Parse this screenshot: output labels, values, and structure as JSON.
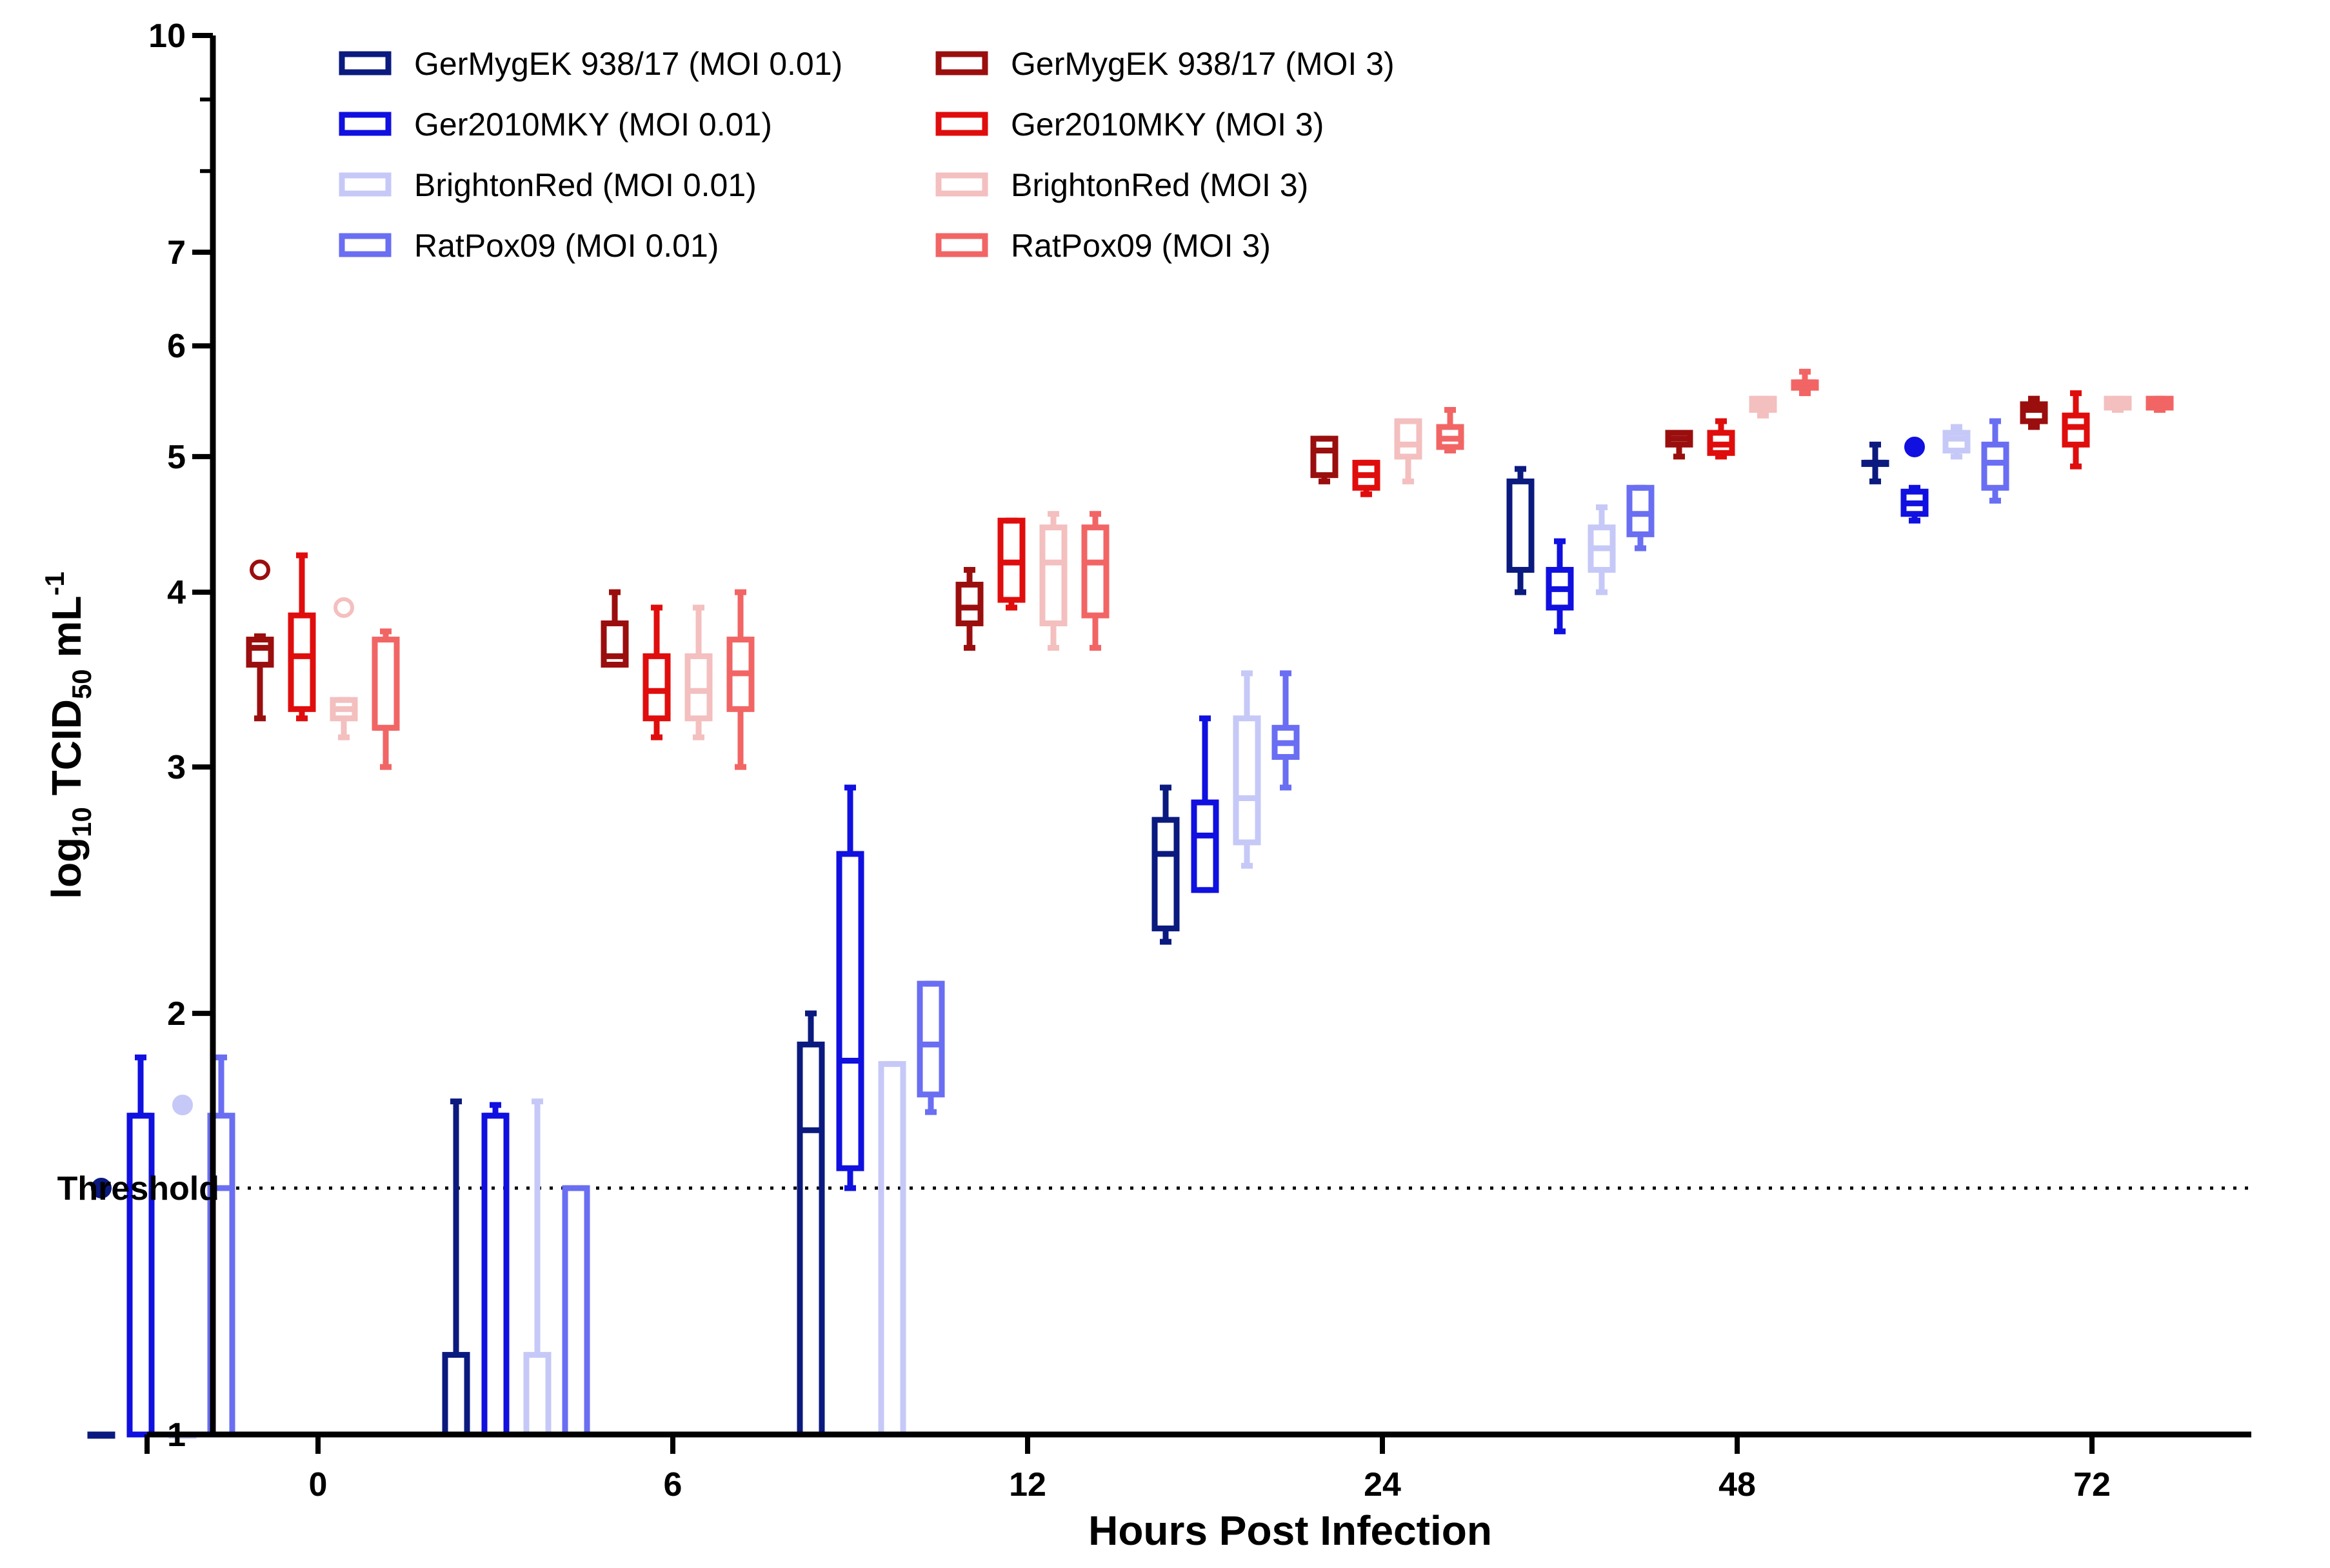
{
  "chart_data": {
    "type": "box",
    "xlabel": "Hours Post Infection",
    "ylabel": "log10 TCID50 mL-1",
    "ylabel_parts": {
      "pre": "log",
      "sub1": "10",
      "mid": " TCID",
      "sub2": "50",
      "post": " mL",
      "sup": "-1"
    },
    "ylim": [
      1,
      10
    ],
    "y_scale": "log",
    "y_ticks": [
      1,
      2,
      3,
      4,
      5,
      6,
      7,
      10
    ],
    "y_tick_labels": [
      "1",
      "2",
      "3",
      "4",
      "5",
      "6",
      "7",
      "10"
    ],
    "threshold": {
      "label": "Threshold",
      "value": 1.5
    },
    "categories": [
      "0",
      "6",
      "12",
      "24",
      "48",
      "72"
    ],
    "legend_position": "top-left",
    "series": [
      {
        "name": "GerMygEK 938/17 (MOI 0.01)",
        "color": "#0a1a7e",
        "fill": "#0a1a7e",
        "boxes": [
          {
            "group": "0",
            "min": 1.0,
            "q1": 1.0,
            "median": 1.0,
            "q3": 1.0,
            "max": 1.0,
            "outliers": [
              1.5
            ],
            "outlier_style": "filled"
          },
          {
            "group": "6",
            "min": 1.0,
            "q1": 1.0,
            "median": 1.0,
            "q3": 1.14,
            "max": 1.73
          },
          {
            "group": "12",
            "min": 1.0,
            "q1": 1.0,
            "median": 1.65,
            "q3": 1.9,
            "max": 2.0
          },
          {
            "group": "24",
            "min": 2.25,
            "q1": 2.3,
            "median": 2.6,
            "q3": 2.75,
            "max": 2.9
          },
          {
            "group": "48",
            "min": 4.0,
            "q1": 4.15,
            "median": 4.15,
            "q3": 4.8,
            "max": 4.9
          },
          {
            "group": "72",
            "min": 4.8,
            "q1": 4.95,
            "median": 4.95,
            "q3": 4.95,
            "max": 5.1
          }
        ]
      },
      {
        "name": "Ger2010MKY (MOI 0.01)",
        "color": "#1010e0",
        "fill": "#1010e0",
        "boxes": [
          {
            "group": "0",
            "min": 1.0,
            "q1": 1.0,
            "median": 1.69,
            "q3": 1.69,
            "max": 1.86
          },
          {
            "group": "6",
            "min": 1.0,
            "q1": 1.0,
            "median": 1.69,
            "q3": 1.69,
            "max": 1.72
          },
          {
            "group": "12",
            "min": 1.5,
            "q1": 1.55,
            "median": 1.85,
            "q3": 2.6,
            "max": 2.9
          },
          {
            "group": "24",
            "min": 2.45,
            "q1": 2.45,
            "median": 2.68,
            "q3": 2.83,
            "max": 3.25
          },
          {
            "group": "48",
            "min": 3.75,
            "q1": 3.9,
            "median": 4.02,
            "q3": 4.15,
            "max": 4.35
          },
          {
            "group": "72",
            "min": 4.5,
            "q1": 4.55,
            "median": 4.63,
            "q3": 4.72,
            "max": 4.75,
            "outliers": [
              5.08
            ],
            "outlier_style": "filled"
          }
        ]
      },
      {
        "name": "BrightonRed (MOI 0.01)",
        "color": "#c6c9f7",
        "fill": "#c6c9f7",
        "boxes": [
          {
            "group": "0",
            "min": 1.0,
            "q1": 1.0,
            "median": 1.0,
            "q3": 1.0,
            "max": 1.0,
            "outliers": [
              1.72
            ],
            "outlier_style": "filled"
          },
          {
            "group": "6",
            "min": 1.0,
            "q1": 1.0,
            "median": 1.0,
            "q3": 1.14,
            "max": 1.73
          },
          {
            "group": "12",
            "min": 1.0,
            "q1": 1.0,
            "median": 1.0,
            "q3": 1.84,
            "max": 1.84
          },
          {
            "group": "24",
            "min": 2.55,
            "q1": 2.65,
            "median": 2.85,
            "q3": 3.25,
            "max": 3.5
          },
          {
            "group": "48",
            "min": 4.0,
            "q1": 4.15,
            "median": 4.3,
            "q3": 4.45,
            "max": 4.6
          },
          {
            "group": "72",
            "min": 5.0,
            "q1": 5.05,
            "median": 5.15,
            "q3": 5.2,
            "max": 5.25
          }
        ]
      },
      {
        "name": "RatPox09 (MOI 0.01)",
        "color": "#6a6ef2",
        "fill": "#6a6ef2",
        "boxes": [
          {
            "group": "0",
            "min": 1.0,
            "q1": 1.0,
            "median": 1.5,
            "q3": 1.69,
            "max": 1.86
          },
          {
            "group": "6",
            "min": 1.0,
            "q1": 1.0,
            "median": 1.5,
            "q3": 1.5,
            "max": 1.5
          },
          {
            "group": "12",
            "min": 1.7,
            "q1": 1.75,
            "median": 1.9,
            "q3": 2.1,
            "max": 2.1
          },
          {
            "group": "24",
            "min": 2.9,
            "q1": 3.05,
            "median": 3.12,
            "q3": 3.2,
            "max": 3.5
          },
          {
            "group": "48",
            "min": 4.3,
            "q1": 4.4,
            "median": 4.55,
            "q3": 4.75,
            "max": 4.75
          },
          {
            "group": "72",
            "min": 4.65,
            "q1": 4.75,
            "median": 4.95,
            "q3": 5.1,
            "max": 5.3
          }
        ]
      },
      {
        "name": "GerMygEK 938/17 (MOI 3)",
        "color": "#9b0e0e",
        "fill": "#9b0e0e",
        "boxes": [
          {
            "group": "0",
            "min": 3.25,
            "q1": 3.55,
            "median": 3.65,
            "q3": 3.7,
            "max": 3.72,
            "outliers": [
              4.15
            ],
            "outlier_style": "open"
          },
          {
            "group": "6",
            "min": 3.55,
            "q1": 3.55,
            "median": 3.6,
            "q3": 3.8,
            "max": 4.0
          },
          {
            "group": "12",
            "min": 3.65,
            "q1": 3.8,
            "median": 3.9,
            "q3": 4.05,
            "max": 4.15
          },
          {
            "group": "24",
            "min": 4.8,
            "q1": 4.85,
            "median": 5.05,
            "q3": 5.15,
            "max": 5.15
          },
          {
            "group": "48",
            "min": 5.0,
            "q1": 5.1,
            "median": 5.15,
            "q3": 5.2,
            "max": 5.2
          },
          {
            "group": "72",
            "min": 5.25,
            "q1": 5.3,
            "median": 5.4,
            "q3": 5.45,
            "max": 5.5
          }
        ]
      },
      {
        "name": "Ger2010MKY (MOI 3)",
        "color": "#e00d0d",
        "fill": "#e00d0d",
        "boxes": [
          {
            "group": "0",
            "min": 3.25,
            "q1": 3.3,
            "median": 3.6,
            "q3": 3.85,
            "max": 4.25
          },
          {
            "group": "6",
            "min": 3.15,
            "q1": 3.25,
            "median": 3.4,
            "q3": 3.6,
            "max": 3.9
          },
          {
            "group": "12",
            "min": 3.9,
            "q1": 3.95,
            "median": 4.2,
            "q3": 4.5,
            "max": 4.5
          },
          {
            "group": "24",
            "min": 4.7,
            "q1": 4.75,
            "median": 4.85,
            "q3": 4.95,
            "max": 4.95
          },
          {
            "group": "48",
            "min": 5.0,
            "q1": 5.03,
            "median": 5.1,
            "q3": 5.2,
            "max": 5.3
          },
          {
            "group": "72",
            "min": 4.92,
            "q1": 5.1,
            "median": 5.25,
            "q3": 5.35,
            "max": 5.55
          }
        ]
      },
      {
        "name": "BrightonRed (MOI 3)",
        "color": "#f4bfbf",
        "fill": "#f4bfbf",
        "boxes": [
          {
            "group": "0",
            "min": 3.15,
            "q1": 3.25,
            "median": 3.3,
            "q3": 3.35,
            "max": 3.35,
            "outliers": [
              3.9
            ],
            "outlier_style": "open"
          },
          {
            "group": "6",
            "min": 3.15,
            "q1": 3.25,
            "median": 3.4,
            "q3": 3.6,
            "max": 3.9
          },
          {
            "group": "12",
            "min": 3.65,
            "q1": 3.8,
            "median": 4.2,
            "q3": 4.45,
            "max": 4.55
          },
          {
            "group": "24",
            "min": 4.8,
            "q1": 5.0,
            "median": 5.1,
            "q3": 5.3,
            "max": 5.3
          },
          {
            "group": "48",
            "min": 5.35,
            "q1": 5.4,
            "median": 5.45,
            "q3": 5.5,
            "max": 5.5
          },
          {
            "group": "72",
            "min": 5.4,
            "q1": 5.42,
            "median": 5.45,
            "q3": 5.5,
            "max": 5.5
          }
        ]
      },
      {
        "name": "RatPox09 (MOI 3)",
        "color": "#f26565",
        "fill": "#f26565",
        "boxes": [
          {
            "group": "0",
            "min": 3.0,
            "q1": 3.2,
            "median": 3.2,
            "q3": 3.7,
            "max": 3.75
          },
          {
            "group": "6",
            "min": 3.0,
            "q1": 3.3,
            "median": 3.5,
            "q3": 3.7,
            "max": 4.0
          },
          {
            "group": "12",
            "min": 3.65,
            "q1": 3.85,
            "median": 4.2,
            "q3": 4.45,
            "max": 4.55
          },
          {
            "group": "24",
            "min": 5.05,
            "q1": 5.08,
            "median": 5.15,
            "q3": 5.25,
            "max": 5.4
          },
          {
            "group": "48",
            "min": 5.55,
            "q1": 5.6,
            "median": 5.65,
            "q3": 5.65,
            "max": 5.75
          },
          {
            "group": "72",
            "min": 5.4,
            "q1": 5.42,
            "median": 5.45,
            "q3": 5.5,
            "max": 5.5
          }
        ]
      }
    ]
  }
}
